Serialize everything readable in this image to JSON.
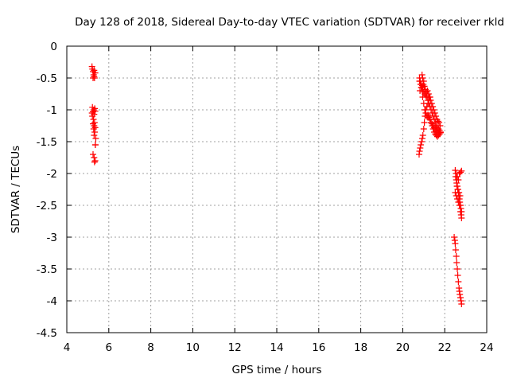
{
  "chart_data": {
    "type": "scatter",
    "title": "Day 128 of 2018, Sidereal Day-to-day VTEC variation (SDTVAR) for receiver rkld",
    "xlabel": "GPS time / hours",
    "ylabel": "SDTVAR / TECUs",
    "xlim": [
      4,
      24
    ],
    "ylim": [
      -4.5,
      0
    ],
    "xticks": [
      4,
      6,
      8,
      10,
      12,
      14,
      16,
      18,
      20,
      22,
      24
    ],
    "yticks": [
      0,
      -0.5,
      -1,
      -1.5,
      -2,
      -2.5,
      -3,
      -3.5,
      -4,
      -4.5
    ],
    "ytick_labels": [
      "0",
      "-0.5",
      "-1",
      "-1.5",
      "-2",
      "-2.5",
      "-3",
      "-3.5",
      "-4",
      "-4.5"
    ],
    "grid": true,
    "marker": "+",
    "marker_color": "#ff0000",
    "series": [
      {
        "x": [
          5.2,
          5.22,
          5.25,
          5.28,
          5.3,
          5.32,
          5.35,
          5.25,
          5.3,
          5.22,
          5.28,
          5.33,
          5.2,
          5.25,
          5.3,
          5.35,
          5.22,
          5.27,
          5.32,
          5.25,
          5.3,
          5.35,
          5.28,
          5.33,
          5.3,
          5.36,
          5.25,
          5.3,
          5.35,
          5.32,
          5.36,
          5.38
        ],
        "y": [
          -0.32,
          -0.36,
          -0.4,
          -0.45,
          -0.38,
          -0.5,
          -0.42,
          -0.5,
          -0.48,
          -0.96,
          -1.0,
          -0.98,
          -1.05,
          -1.03,
          -1.07,
          -1.02,
          -1.1,
          -1.15,
          -1.2,
          -1.22,
          -1.25,
          -1.28,
          -1.3,
          -1.35,
          -1.4,
          -1.55,
          -1.7,
          -1.75,
          -1.8,
          -1.82,
          -1.55,
          -1.45
        ]
      },
      {
        "x": [
          20.8,
          20.85,
          20.9,
          20.95,
          21.0,
          21.05,
          21.1,
          21.15,
          21.2,
          21.25,
          21.3,
          21.35,
          21.4,
          21.45,
          21.5,
          21.55,
          21.6,
          21.65,
          21.7,
          21.75,
          21.8,
          20.82,
          20.88,
          20.93,
          20.98,
          21.03,
          21.08,
          21.13,
          21.18,
          21.23,
          21.28,
          21.33,
          21.38,
          21.43,
          21.48,
          21.53,
          21.58,
          21.63,
          21.68,
          21.73,
          21.78,
          20.8,
          20.83,
          20.87,
          20.9,
          20.95,
          21.0,
          21.05,
          21.1,
          21.15,
          21.2,
          21.25,
          21.3,
          21.35,
          21.4,
          21.45,
          21.5,
          21.55,
          21.6,
          21.65,
          21.7,
          21.75,
          20.78,
          20.8,
          20.83,
          20.86,
          20.9,
          20.93,
          20.96,
          21.0,
          21.03,
          21.06,
          21.1,
          21.15,
          21.2,
          21.25,
          21.3,
          21.2,
          21.25,
          21.3,
          21.35,
          21.4,
          21.45,
          21.5,
          21.55,
          21.6,
          21.65,
          21.7,
          21.75,
          21.8,
          20.92,
          20.95,
          21.0
        ],
        "y": [
          -0.55,
          -0.6,
          -0.65,
          -0.7,
          -0.72,
          -0.75,
          -0.78,
          -0.8,
          -0.85,
          -0.9,
          -0.95,
          -1.0,
          -1.05,
          -1.1,
          -1.15,
          -1.2,
          -1.25,
          -1.28,
          -1.3,
          -1.32,
          -1.35,
          -0.7,
          -0.65,
          -0.62,
          -0.6,
          -0.63,
          -0.68,
          -0.72,
          -0.7,
          -0.75,
          -0.8,
          -0.85,
          -0.9,
          -0.95,
          -1.0,
          -1.05,
          -1.1,
          -1.15,
          -1.18,
          -1.2,
          -1.25,
          -0.5,
          -0.55,
          -0.6,
          -0.65,
          -0.8,
          -0.9,
          -1.0,
          -1.05,
          -1.1,
          -1.08,
          -1.12,
          -1.15,
          -1.2,
          -1.25,
          -1.3,
          -1.35,
          -1.38,
          -1.4,
          -1.42,
          -1.38,
          -1.35,
          -1.7,
          -1.65,
          -1.6,
          -1.55,
          -1.5,
          -1.45,
          -1.4,
          -1.3,
          -1.2,
          -1.1,
          -1.0,
          -0.95,
          -0.9,
          -0.85,
          -0.8,
          -1.12,
          -1.1,
          -1.15,
          -1.2,
          -1.22,
          -1.25,
          -1.28,
          -1.3,
          -1.33,
          -1.35,
          -1.4,
          -1.38,
          -1.36,
          -0.45,
          -0.5,
          -0.55
        ]
      },
      {
        "x": [
          22.5,
          22.52,
          22.55,
          22.57,
          22.6,
          22.62,
          22.65,
          22.67,
          22.7,
          22.72,
          22.75,
          22.77,
          22.8,
          22.5,
          22.55,
          22.6,
          22.65,
          22.7,
          22.75,
          22.8,
          22.55,
          22.6,
          22.65,
          22.7,
          22.75,
          22.8,
          22.58,
          22.63,
          22.68,
          22.73,
          22.78,
          22.45,
          22.48,
          22.5,
          22.52,
          22.55,
          22.57,
          22.6,
          22.62,
          22.65,
          22.68,
          22.7,
          22.72,
          22.75,
          22.78,
          22.8
        ],
        "y": [
          -1.95,
          -2.05,
          -2.1,
          -2.15,
          -2.2,
          -2.25,
          -2.3,
          -2.35,
          -2.4,
          -2.45,
          -2.5,
          -2.55,
          -2.6,
          -2.3,
          -2.35,
          -2.4,
          -2.45,
          -2.5,
          -2.6,
          -2.7,
          -2.0,
          -2.05,
          -2.1,
          -2.0,
          -1.98,
          -1.96,
          -2.2,
          -2.25,
          -2.3,
          -2.35,
          -2.65,
          -3.0,
          -3.05,
          -3.1,
          -3.2,
          -3.3,
          -3.4,
          -3.5,
          -3.6,
          -3.7,
          -3.8,
          -3.85,
          -3.9,
          -3.95,
          -4.0,
          -4.05
        ]
      }
    ]
  }
}
